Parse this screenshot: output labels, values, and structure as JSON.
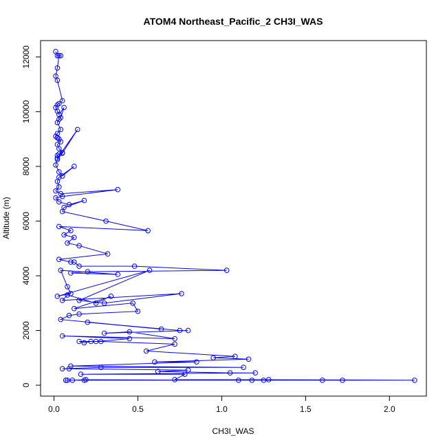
{
  "chart_data": {
    "type": "line",
    "title": "ATOM4 Northeast_Pacific_2 CH3I_WAS",
    "xlabel": "CH3I_WAS",
    "ylabel": "Altitude (m)",
    "xlim": [
      -0.08,
      2.22
    ],
    "ylim": [
      -400,
      12600
    ],
    "xticks": [
      0.0,
      0.5,
      1.0,
      1.5,
      2.0
    ],
    "xtick_labels": [
      "0.0",
      "0.5",
      "1.0",
      "1.5",
      "2.0"
    ],
    "yticks": [
      0,
      2000,
      4000,
      6000,
      8000,
      10000,
      12000
    ],
    "ytick_labels": [
      "0",
      "2000",
      "4000",
      "6000",
      "8000",
      "10000",
      "12000"
    ],
    "grid": false,
    "legend": "none",
    "color": "#0000ff",
    "series": [
      {
        "x": [
          0.01,
          0.02,
          0.04,
          0.03,
          0.02,
          0.01,
          0.02,
          0.05,
          0.03,
          0.02,
          0.01,
          0.02,
          0.03,
          0.06,
          0.04,
          0.03,
          0.02,
          0.04,
          0.02,
          0.01,
          0.02,
          0.02,
          0.03,
          0.04,
          0.02,
          0.03,
          0.05,
          0.03,
          0.02,
          0.02,
          0.14,
          0.05,
          0.02,
          0.01,
          0.03,
          0.05,
          0.12,
          0.03,
          0.02,
          0.03,
          0.01,
          0.04,
          0.38,
          0.05,
          0.01,
          0.03,
          0.09,
          0.18,
          0.06,
          0.05,
          0.31,
          0.56,
          0.03,
          0.1,
          0.06,
          0.12,
          0.08,
          0.15,
          0.32,
          0.03,
          0.1,
          0.12,
          0.15,
          0.48,
          1.03,
          0.2,
          0.1,
          0.38,
          0.04,
          0.08,
          0.1,
          0.02,
          0.57,
          0.15,
          0.3,
          0.76,
          0.05,
          0.08,
          0.25,
          0.34,
          0.12,
          0.47,
          0.5,
          0.15,
          0.09,
          0.04,
          0.64,
          0.2,
          0.75,
          0.8,
          0.3,
          0.45,
          0.72,
          0.05,
          0.45,
          0.25,
          0.22,
          0.18,
          0.15,
          0.28,
          0.72,
          0.55,
          1.08,
          0.95,
          1.16,
          0.6,
          0.85,
          0.1,
          1.13,
          0.28,
          0.05,
          0.09,
          0.8,
          0.62,
          1.05,
          1.2,
          0.16,
          0.78,
          0.72,
          1.28,
          2.15,
          1.72,
          1.6,
          0.08,
          1.25,
          1.18,
          0.18,
          0.07,
          0.11,
          0.19,
          1.1
        ],
        "y": [
          12200,
          12050,
          12050,
          12050,
          11600,
          11300,
          11150,
          10400,
          10300,
          10250,
          10150,
          10020,
          9900,
          10150,
          9780,
          9720,
          9600,
          9350,
          9200,
          9100,
          9050,
          9050,
          9000,
          8900,
          8800,
          8650,
          8500,
          8450,
          8400,
          8300,
          9350,
          8480,
          8250,
          8050,
          7800,
          7650,
          8000,
          7600,
          7450,
          7250,
          7100,
          7000,
          7150,
          6900,
          6850,
          6700,
          6600,
          6750,
          6500,
          6350,
          6000,
          5650,
          5800,
          5650,
          5500,
          5400,
          5200,
          5100,
          4800,
          4600,
          4500,
          4500,
          4350,
          4350,
          4200,
          4150,
          4100,
          4050,
          4200,
          3600,
          3350,
          3250,
          4200,
          3100,
          3000,
          3350,
          3100,
          3300,
          3000,
          3250,
          2800,
          3000,
          2700,
          2600,
          2550,
          2400,
          2050,
          2300,
          2000,
          2000,
          1900,
          1950,
          1700,
          1800,
          1700,
          1600,
          1600,
          1550,
          1600,
          1600,
          1500,
          1250,
          1050,
          1000,
          950,
          850,
          850,
          700,
          650,
          650,
          600,
          600,
          550,
          500,
          450,
          450,
          400,
          400,
          200,
          200,
          180,
          180,
          180,
          180,
          180,
          180,
          180,
          180,
          180,
          200,
          180
        ]
      }
    ]
  }
}
